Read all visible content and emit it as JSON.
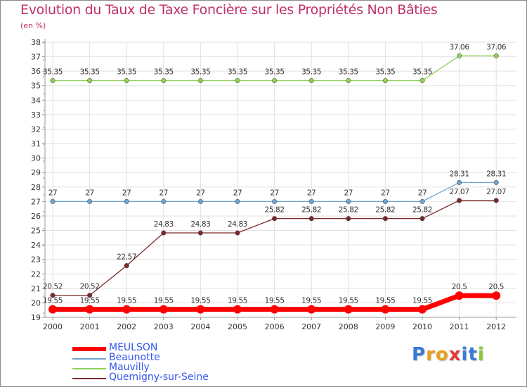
{
  "title": "Evolution du Taux de Taxe Foncière sur les Propriétés Non Bâties",
  "unit_label": "(en %)",
  "chart_data": {
    "type": "line",
    "title": "Evolution du Taux de Taxe Foncière sur les Propriétés Non Bâties",
    "xlabel": "",
    "ylabel": "(en %)",
    "ylim": [
      19,
      38
    ],
    "yticks": [
      19,
      20,
      21,
      22,
      23,
      24,
      25,
      26,
      27,
      28,
      29,
      30,
      31,
      32,
      33,
      34,
      35,
      36,
      37,
      38
    ],
    "categories": [
      "2000",
      "2001",
      "2002",
      "2003",
      "2004",
      "2005",
      "2006",
      "2007",
      "2008",
      "2009",
      "2010",
      "2011",
      "2012"
    ],
    "grid": true,
    "legend_position": "bottom-left",
    "series": [
      {
        "name": "MEULSON",
        "color": "#ff0000",
        "values": [
          19.55,
          19.55,
          19.55,
          19.55,
          19.55,
          19.55,
          19.55,
          19.55,
          19.55,
          19.55,
          19.55,
          20.5,
          20.5
        ],
        "labels": [
          "19.55",
          "19.55",
          "19.55",
          "19.55",
          "19.55",
          "19.55",
          "19.55",
          "19.55",
          "19.55",
          "19.55",
          "19.55",
          "20.5",
          "20.5"
        ]
      },
      {
        "name": "Beaunotte",
        "color": "#6fa3cf",
        "values": [
          27,
          27,
          27,
          27,
          27,
          27,
          27,
          27,
          27,
          27,
          27,
          28.31,
          28.31
        ],
        "labels": [
          "27",
          "27",
          "27",
          "27",
          "27",
          "27",
          "27",
          "27",
          "27",
          "27",
          "27",
          "28.31",
          "28.31"
        ]
      },
      {
        "name": "Mauvilly",
        "color": "#8fd15a",
        "values": [
          35.35,
          35.35,
          35.35,
          35.35,
          35.35,
          35.35,
          35.35,
          35.35,
          35.35,
          35.35,
          35.35,
          37.06,
          37.06
        ],
        "labels": [
          "35.35",
          "35.35",
          "35.35",
          "35.35",
          "35.35",
          "35.35",
          "35.35",
          "35.35",
          "35.35",
          "35.35",
          "35.35",
          "37.06",
          "37.06"
        ]
      },
      {
        "name": "Quemigny-sur-Seine",
        "color": "#7b2a2a",
        "values": [
          20.52,
          20.52,
          22.57,
          24.83,
          24.83,
          24.83,
          25.82,
          25.82,
          25.82,
          25.82,
          25.82,
          27.07,
          27.07
        ],
        "labels": [
          "20.52",
          "20.52",
          "22.57",
          "24.83",
          "24.83",
          "24.83",
          "25.82",
          "25.82",
          "25.82",
          "25.82",
          "25.82",
          "27.07",
          "27.07"
        ]
      }
    ]
  },
  "legend": {
    "items": [
      {
        "name": "MEULSON",
        "color": "#ff0000",
        "text_color": "#3355ee"
      },
      {
        "name": "Beaunotte",
        "color": "#6fa3cf",
        "text_color": "#3355ee"
      },
      {
        "name": "Mauvilly",
        "color": "#8fd15a",
        "text_color": "#3355ee"
      },
      {
        "name": "Quemigny-sur-Seine",
        "color": "#7b2a2a",
        "text_color": "#3355ee"
      }
    ]
  },
  "logo": {
    "letters": [
      "P",
      "r",
      "o",
      "x",
      "i",
      "t",
      "i"
    ],
    "colors": [
      "#3a7ad8",
      "#e8a020",
      "#e8a020",
      "#e23a3a",
      "#3a7ad8",
      "#3a7ad8",
      "#8cc43a"
    ]
  }
}
